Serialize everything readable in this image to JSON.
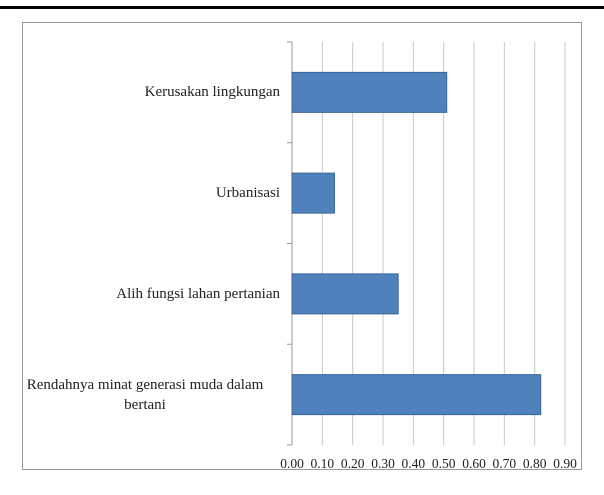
{
  "chart_data": {
    "type": "bar",
    "orientation": "horizontal",
    "categories": [
      "Kerusakan lingkungan",
      "Urbanisasi",
      "Alih fungsi lahan pertanian",
      "Rendahnya minat generasi muda dalam bertani"
    ],
    "values": [
      0.51,
      0.14,
      0.35,
      0.82
    ],
    "color": "#4f81bd",
    "xlim": [
      0,
      0.9
    ],
    "xticks": [
      {
        "value": 0,
        "label": "0.00"
      },
      {
        "value": 0.1,
        "label": "0.10"
      },
      {
        "value": 0.2,
        "label": "0.20"
      },
      {
        "value": 0.3,
        "label": "0.30"
      },
      {
        "value": 0.4,
        "label": "0.40"
      },
      {
        "value": 0.5,
        "label": "0.50"
      },
      {
        "value": 0.6,
        "label": "0.60"
      },
      {
        "value": 0.7,
        "label": "0.70"
      },
      {
        "value": 0.8,
        "label": "0.80"
      },
      {
        "value": 0.9,
        "label": "0.90"
      }
    ],
    "grid": true
  }
}
